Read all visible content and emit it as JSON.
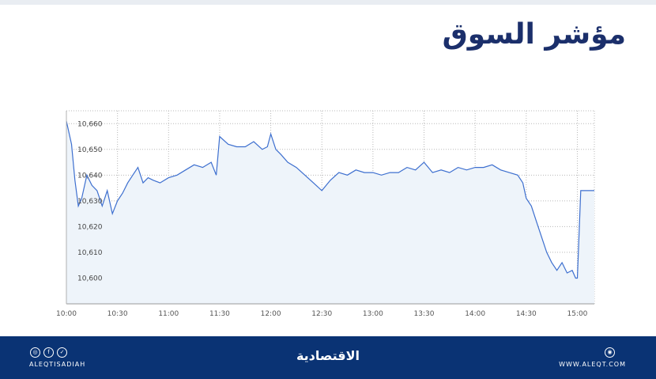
{
  "header": {
    "title": "مؤشر السوق"
  },
  "footer": {
    "handle": "ALEQTISADIAH",
    "brand": "الاقتصادية",
    "url": "WWW.ALEQT.COM",
    "social_icons": [
      "instagram-icon",
      "facebook-icon",
      "twitter-icon"
    ],
    "web_icon": "globe-icon"
  },
  "colors": {
    "line": "#3d6fcf",
    "fill": "#eef4fa",
    "grid": "#b8b8b8",
    "footer_bg": "#0a3374",
    "title": "#1b2f6b"
  },
  "chart_data": {
    "type": "area",
    "title": "",
    "xlabel": "",
    "ylabel": "",
    "ylim": [
      10590,
      10665
    ],
    "grid": true,
    "legend": "none",
    "x_ticks": [
      "10:00",
      "10:30",
      "11:00",
      "11:30",
      "12:00",
      "12:30",
      "13:00",
      "13:30",
      "14:00",
      "14:30",
      "15:00"
    ],
    "y_ticks": [
      "10,600",
      "10,610",
      "10,620",
      "10,630",
      "10,640",
      "10,650",
      "10,660"
    ],
    "series": [
      {
        "x": [
          "10:00",
          "10:03",
          "10:05",
          "10:07",
          "10:09",
          "10:12",
          "10:15",
          "10:18",
          "10:21",
          "10:24",
          "10:27",
          "10:30",
          "10:33",
          "10:36",
          "10:39",
          "10:42",
          "10:45",
          "10:48",
          "10:51",
          "10:55",
          "11:00",
          "11:05",
          "11:10",
          "11:15",
          "11:20",
          "11:25",
          "11:28",
          "11:30",
          "11:35",
          "11:40",
          "11:45",
          "11:50",
          "11:55",
          "11:58",
          "12:00",
          "12:03",
          "12:06",
          "12:10",
          "12:15",
          "12:20",
          "12:25",
          "12:30",
          "12:35",
          "12:40",
          "12:45",
          "12:50",
          "12:55",
          "13:00",
          "13:05",
          "13:10",
          "13:15",
          "13:20",
          "13:25",
          "13:30",
          "13:35",
          "13:40",
          "13:45",
          "13:50",
          "13:55",
          "14:00",
          "14:05",
          "14:10",
          "14:15",
          "14:20",
          "14:25",
          "14:28",
          "14:30",
          "14:33",
          "14:36",
          "14:39",
          "14:42",
          "14:45",
          "14:48",
          "14:51",
          "14:54",
          "14:57",
          "14:59",
          "15:00",
          "15:02",
          "15:05",
          "15:10"
        ],
        "values": [
          10661,
          10652,
          10638,
          10628,
          10631,
          10640,
          10636,
          10634,
          10628,
          10634,
          10625,
          10630,
          10633,
          10637,
          10640,
          10643,
          10637,
          10639,
          10638,
          10637,
          10639,
          10640,
          10642,
          10644,
          10643,
          10645,
          10640,
          10655,
          10652,
          10651,
          10651,
          10653,
          10650,
          10651,
          10656,
          10650,
          10648,
          10645,
          10643,
          10640,
          10637,
          10634,
          10638,
          10641,
          10640,
          10642,
          10641,
          10641,
          10640,
          10641,
          10641,
          10643,
          10642,
          10645,
          10641,
          10642,
          10641,
          10643,
          10642,
          10643,
          10643,
          10644,
          10642,
          10641,
          10640,
          10637,
          10631,
          10628,
          10622,
          10616,
          10610,
          10606,
          10603,
          10606,
          10602,
          10603,
          10600,
          10600,
          10634,
          10634,
          10634
        ]
      }
    ]
  }
}
